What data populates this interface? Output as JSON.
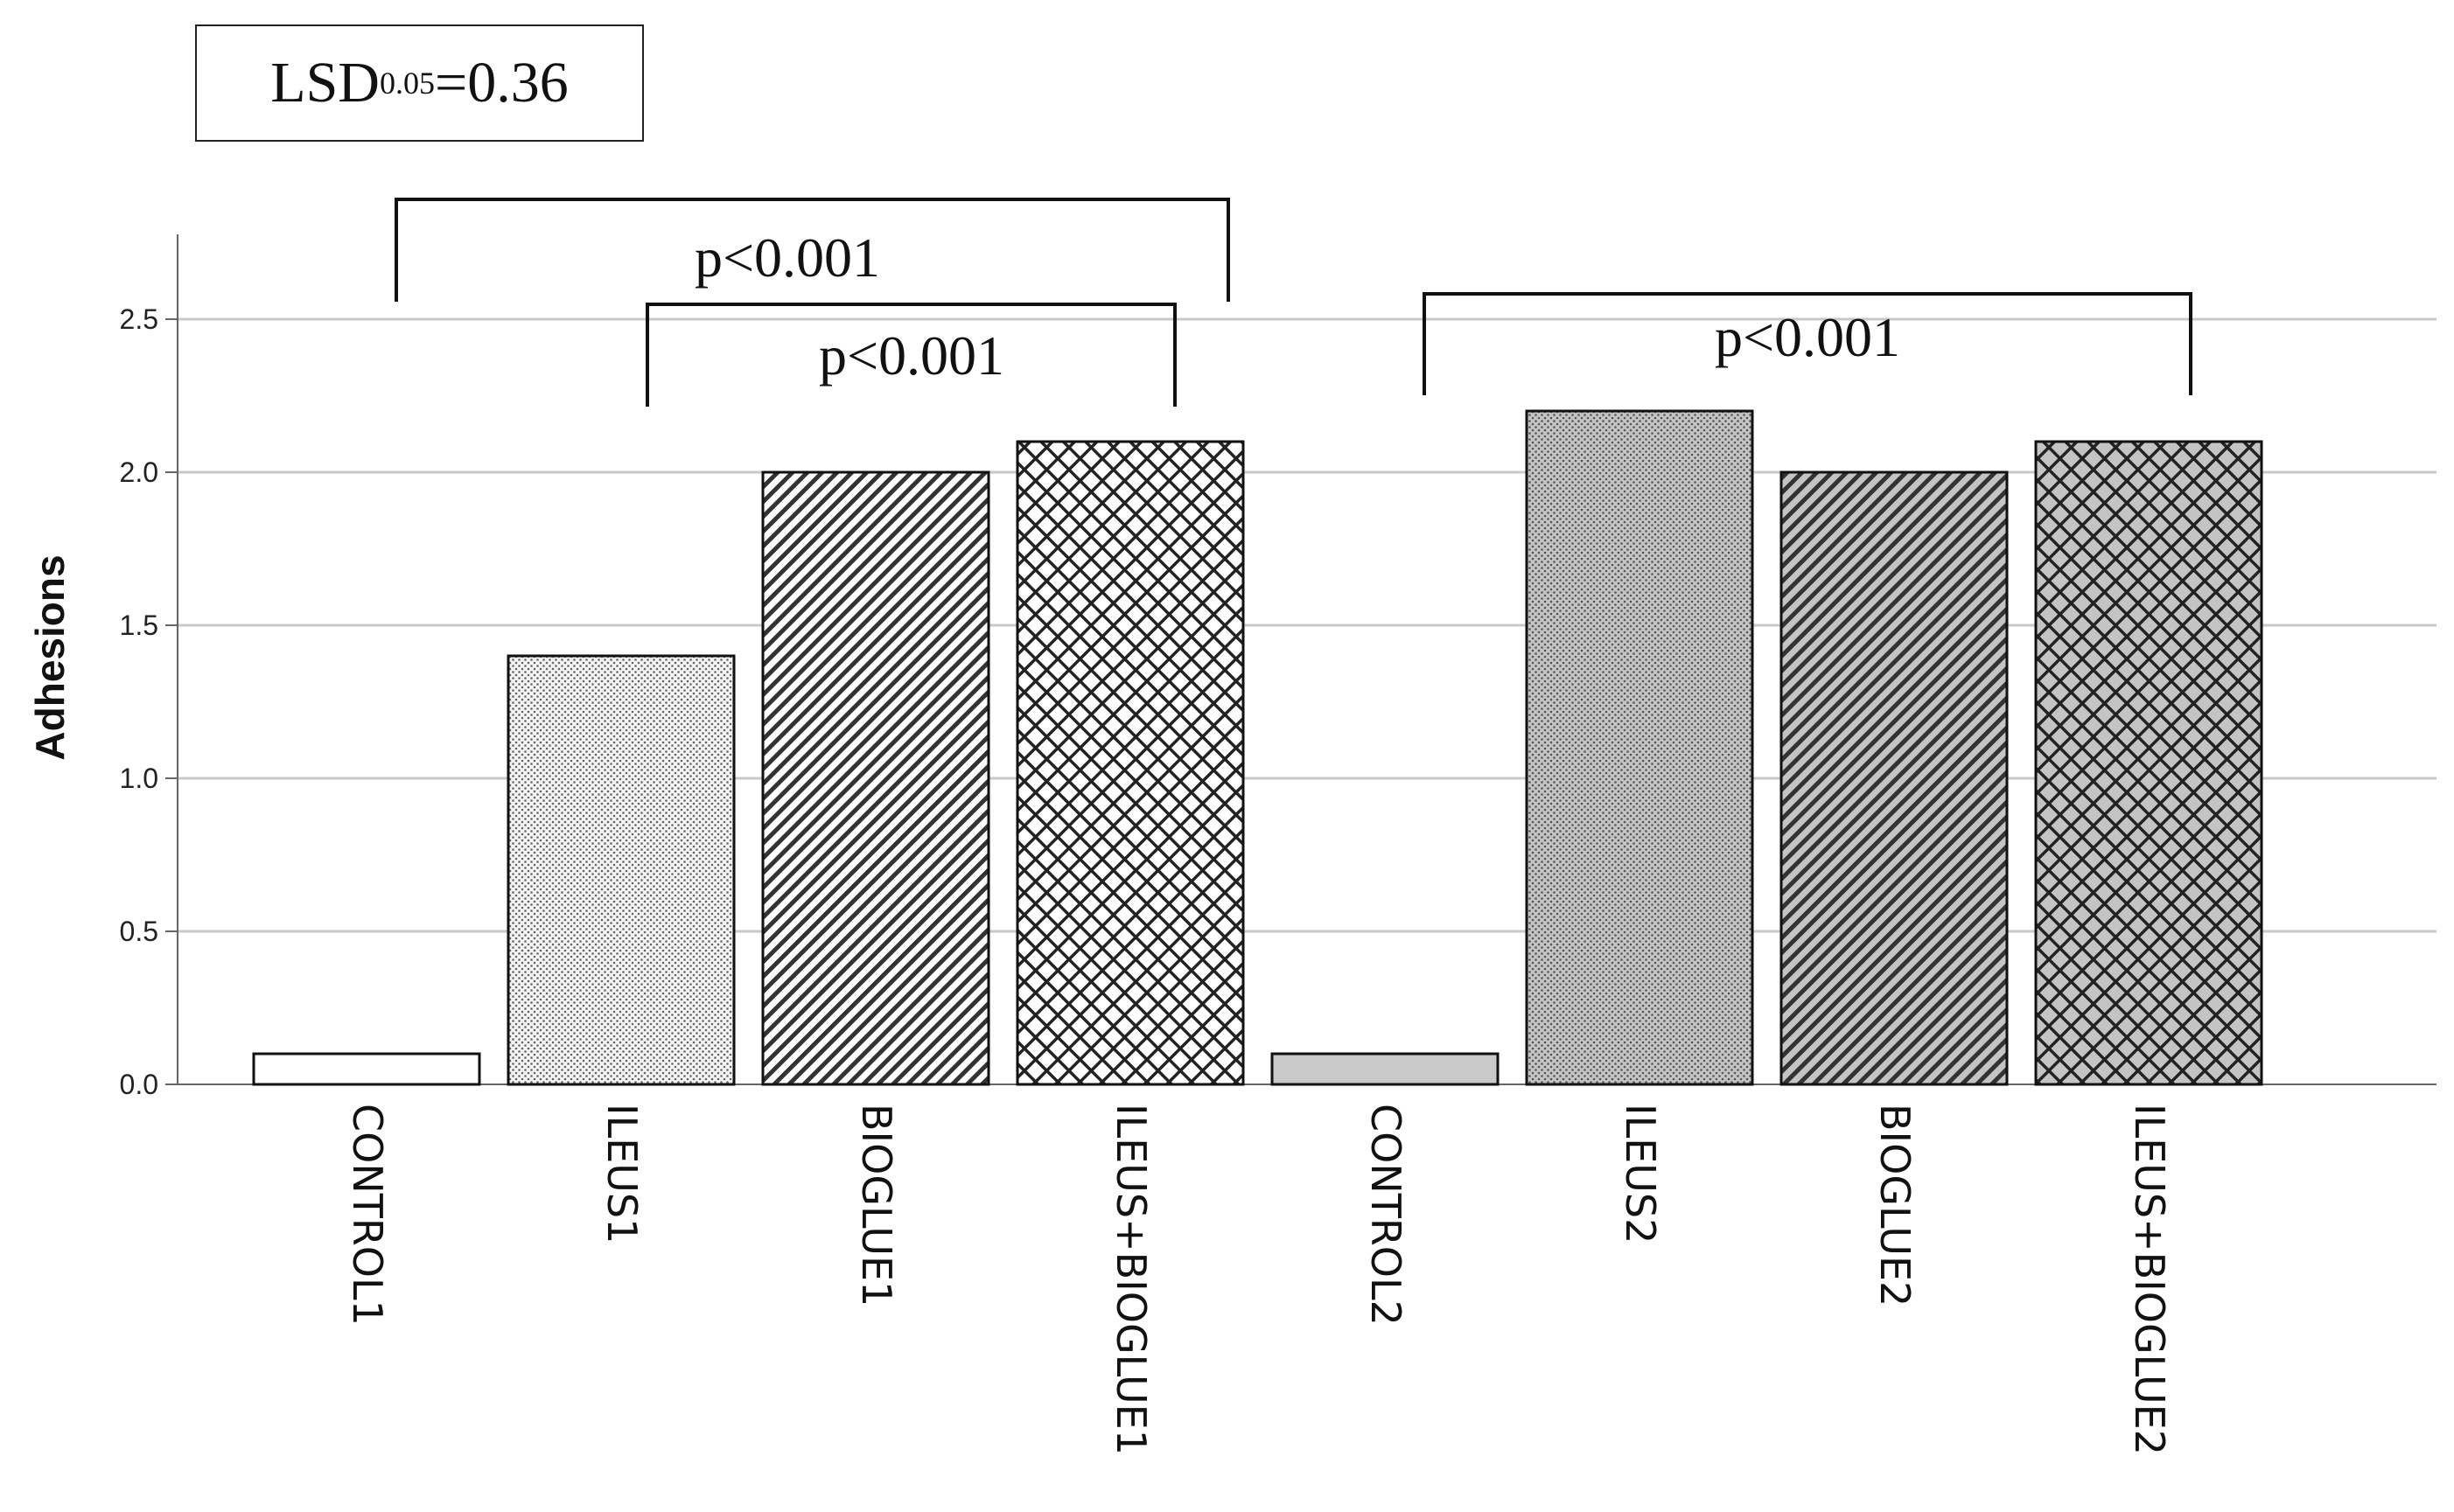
{
  "lsd": {
    "prefix": "LSD",
    "sub": "0.05",
    "suffix": "=0.36"
  },
  "chart_data": {
    "type": "bar",
    "title": "",
    "xlabel": "",
    "ylabel": "Adhesions",
    "ylim": [
      0,
      2.5
    ],
    "yticks": [
      "0.0",
      "0.5",
      "1.0",
      "1.5",
      "2.0",
      "2.5"
    ],
    "grid": true,
    "categories": [
      "CONTROL1",
      "ILEUS1",
      "BIOGLUE1",
      "ILEUS+BIOGLUE1",
      "CONTROL2",
      "ILEUS2",
      "BIOGLUE2",
      "ILEUS+BIOGLUE2"
    ],
    "values": [
      0.1,
      1.4,
      2.0,
      2.1,
      0.1,
      2.2,
      2.0,
      2.1
    ],
    "fills": [
      "plain",
      "dots",
      "diagonal",
      "crosshatch",
      "plain",
      "dots",
      "diagonal",
      "crosshatch"
    ],
    "group_colors": [
      "#ffffff",
      "#c9c9c9"
    ],
    "annotations": [
      {
        "from": 0,
        "to": 3,
        "label": "p<0.001"
      },
      {
        "from": 1,
        "to": 3,
        "label": "p<0.001"
      },
      {
        "from": 4,
        "to": 7,
        "label": "p<0.001"
      }
    ]
  }
}
